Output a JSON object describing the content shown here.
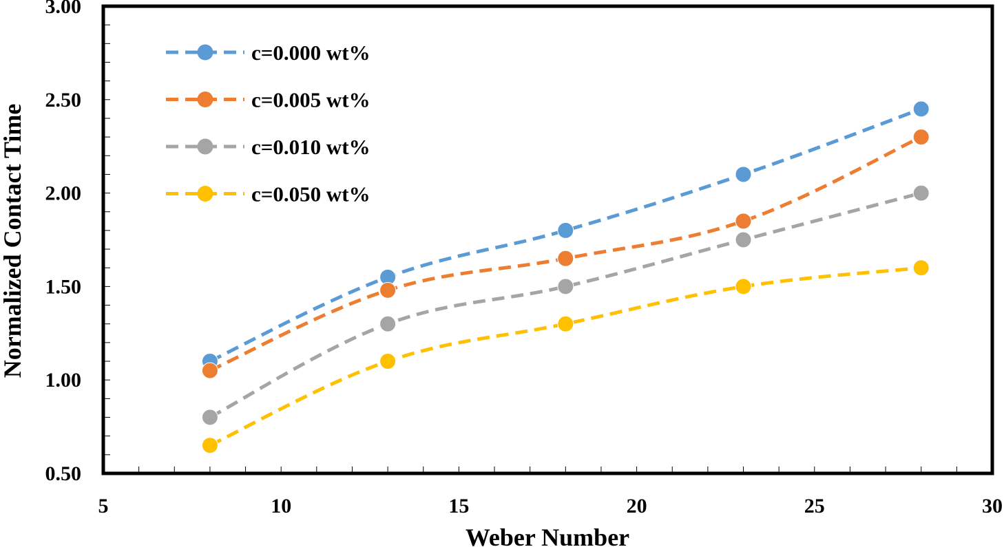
{
  "chart_data": {
    "type": "line",
    "title": "",
    "xlabel": "Weber  Number",
    "ylabel": "Normalized Contact Time",
    "xlim": [
      5,
      30
    ],
    "ylim": [
      0.5,
      3.0
    ],
    "xticks": [
      5,
      10,
      15,
      20,
      25,
      30
    ],
    "xtick_labels": [
      "5",
      "10",
      "15",
      "20",
      "25",
      "30"
    ],
    "yticks": [
      0.5,
      1.0,
      1.5,
      2.0,
      2.5,
      3.0
    ],
    "ytick_labels": [
      "0.50",
      "1.00",
      "1.50",
      "2.00",
      "2.50",
      "3.00"
    ],
    "grid": false,
    "legend_position": "top-left",
    "x": [
      8,
      13,
      18,
      23,
      28
    ],
    "series": [
      {
        "name": "c=0.000 wt%",
        "color": "#5B9BD5",
        "values": [
          1.1,
          1.55,
          1.8,
          2.1,
          2.45
        ]
      },
      {
        "name": "c=0.005 wt%",
        "color": "#ED7D31",
        "values": [
          1.05,
          1.48,
          1.65,
          1.85,
          2.3
        ]
      },
      {
        "name": "c=0.010 wt%",
        "color": "#A5A5A5",
        "values": [
          0.8,
          1.3,
          1.5,
          1.75,
          2.0
        ]
      },
      {
        "name": "c=0.050 wt%",
        "color": "#FFC000",
        "values": [
          0.65,
          1.1,
          1.3,
          1.5,
          1.6
        ]
      }
    ]
  }
}
